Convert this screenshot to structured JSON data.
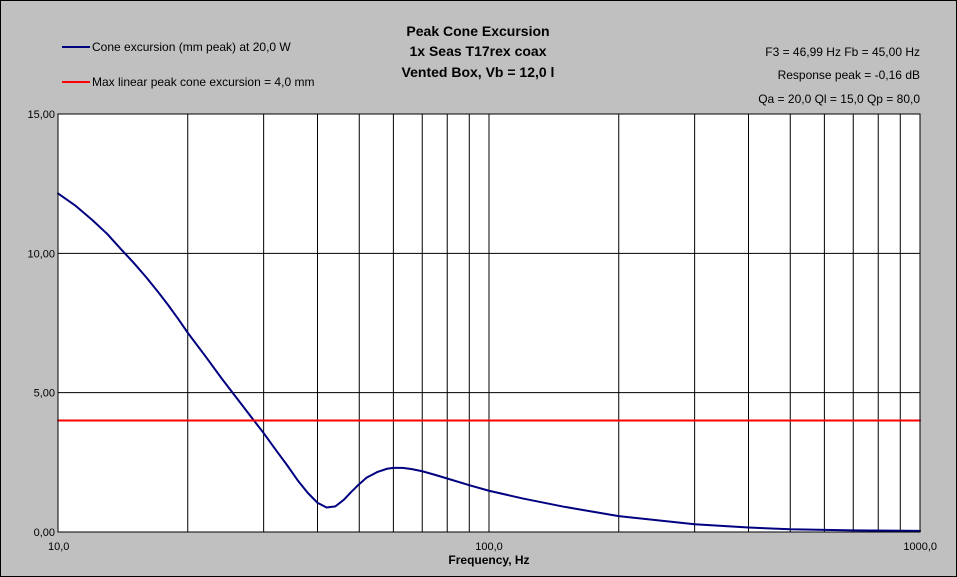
{
  "chart_data": {
    "type": "line",
    "title_lines": [
      "Peak Cone Excursion",
      "1x Seas T17rex coax",
      "Vented Box, Vb = 12,0 l"
    ],
    "xlabel": "Frequency, Hz",
    "ylabel": "",
    "x_scale": "log",
    "xlim": [
      10,
      1000
    ],
    "ylim": [
      0,
      15
    ],
    "x_ticks": [
      10,
      100,
      1000
    ],
    "x_tick_labels": [
      "10,0",
      "100,0",
      "1000,0"
    ],
    "y_ticks": [
      0,
      5,
      10,
      15
    ],
    "y_tick_labels": [
      "0,00",
      "5,00",
      "10,00",
      "15,00"
    ],
    "grid": true,
    "legend_placement": "top-left",
    "info_lines": [
      "F3 = 46,99 Hz  Fb = 45,00 Hz",
      "Response peak = -0,16 dB",
      "Qa = 20,0  Ql = 15,0  Qp = 80,0"
    ],
    "series": [
      {
        "name": "Cone excursion (mm peak) at 20,0 W",
        "color": "#000080",
        "x": [
          10,
          11,
          12,
          13,
          14,
          15,
          16,
          17,
          18,
          19,
          20,
          22,
          24,
          26,
          28,
          30,
          32,
          34,
          36,
          38,
          40,
          42,
          44,
          46,
          48,
          50,
          52,
          55,
          58,
          60,
          63,
          66,
          70,
          75,
          80,
          90,
          100,
          120,
          150,
          200,
          300,
          400,
          500,
          700,
          1000
        ],
        "values": [
          12.15,
          11.7,
          11.2,
          10.7,
          10.15,
          9.65,
          9.15,
          8.65,
          8.15,
          7.65,
          7.15,
          6.3,
          5.5,
          4.8,
          4.15,
          3.55,
          2.95,
          2.4,
          1.85,
          1.4,
          1.05,
          0.88,
          0.92,
          1.15,
          1.45,
          1.72,
          1.95,
          2.15,
          2.27,
          2.3,
          2.3,
          2.26,
          2.18,
          2.05,
          1.92,
          1.68,
          1.48,
          1.2,
          0.9,
          0.57,
          0.28,
          0.16,
          0.1,
          0.06,
          0.04
        ]
      },
      {
        "name": "Max linear peak cone excursion = 4,0 mm",
        "color": "#ff0000",
        "x": [
          10,
          1000
        ],
        "values": [
          4.0,
          4.0
        ]
      }
    ]
  }
}
